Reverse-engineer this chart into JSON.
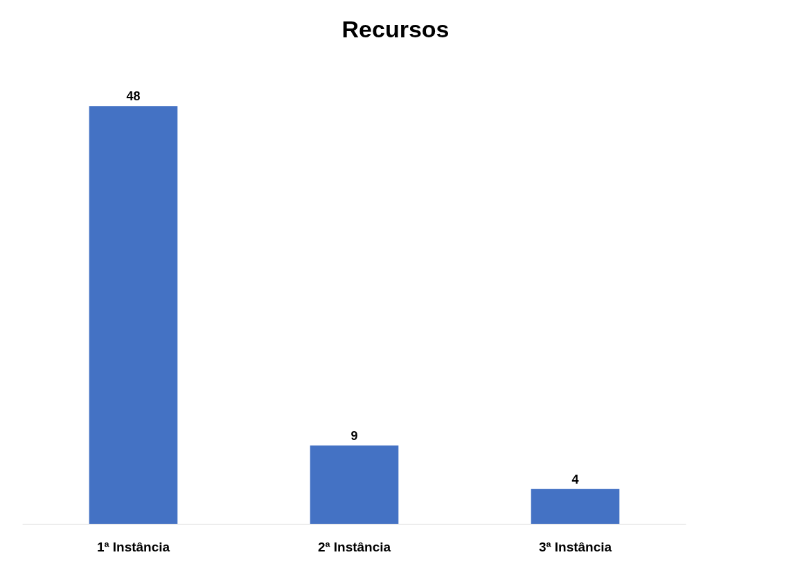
{
  "chart_data": {
    "type": "bar",
    "title": "Recursos",
    "categories": [
      "1ª Instância",
      "2ª Instância",
      "3ª Instância"
    ],
    "values": [
      48,
      9,
      4
    ],
    "color": "#4472c4",
    "data_labels": true,
    "tick_labels": "x"
  }
}
